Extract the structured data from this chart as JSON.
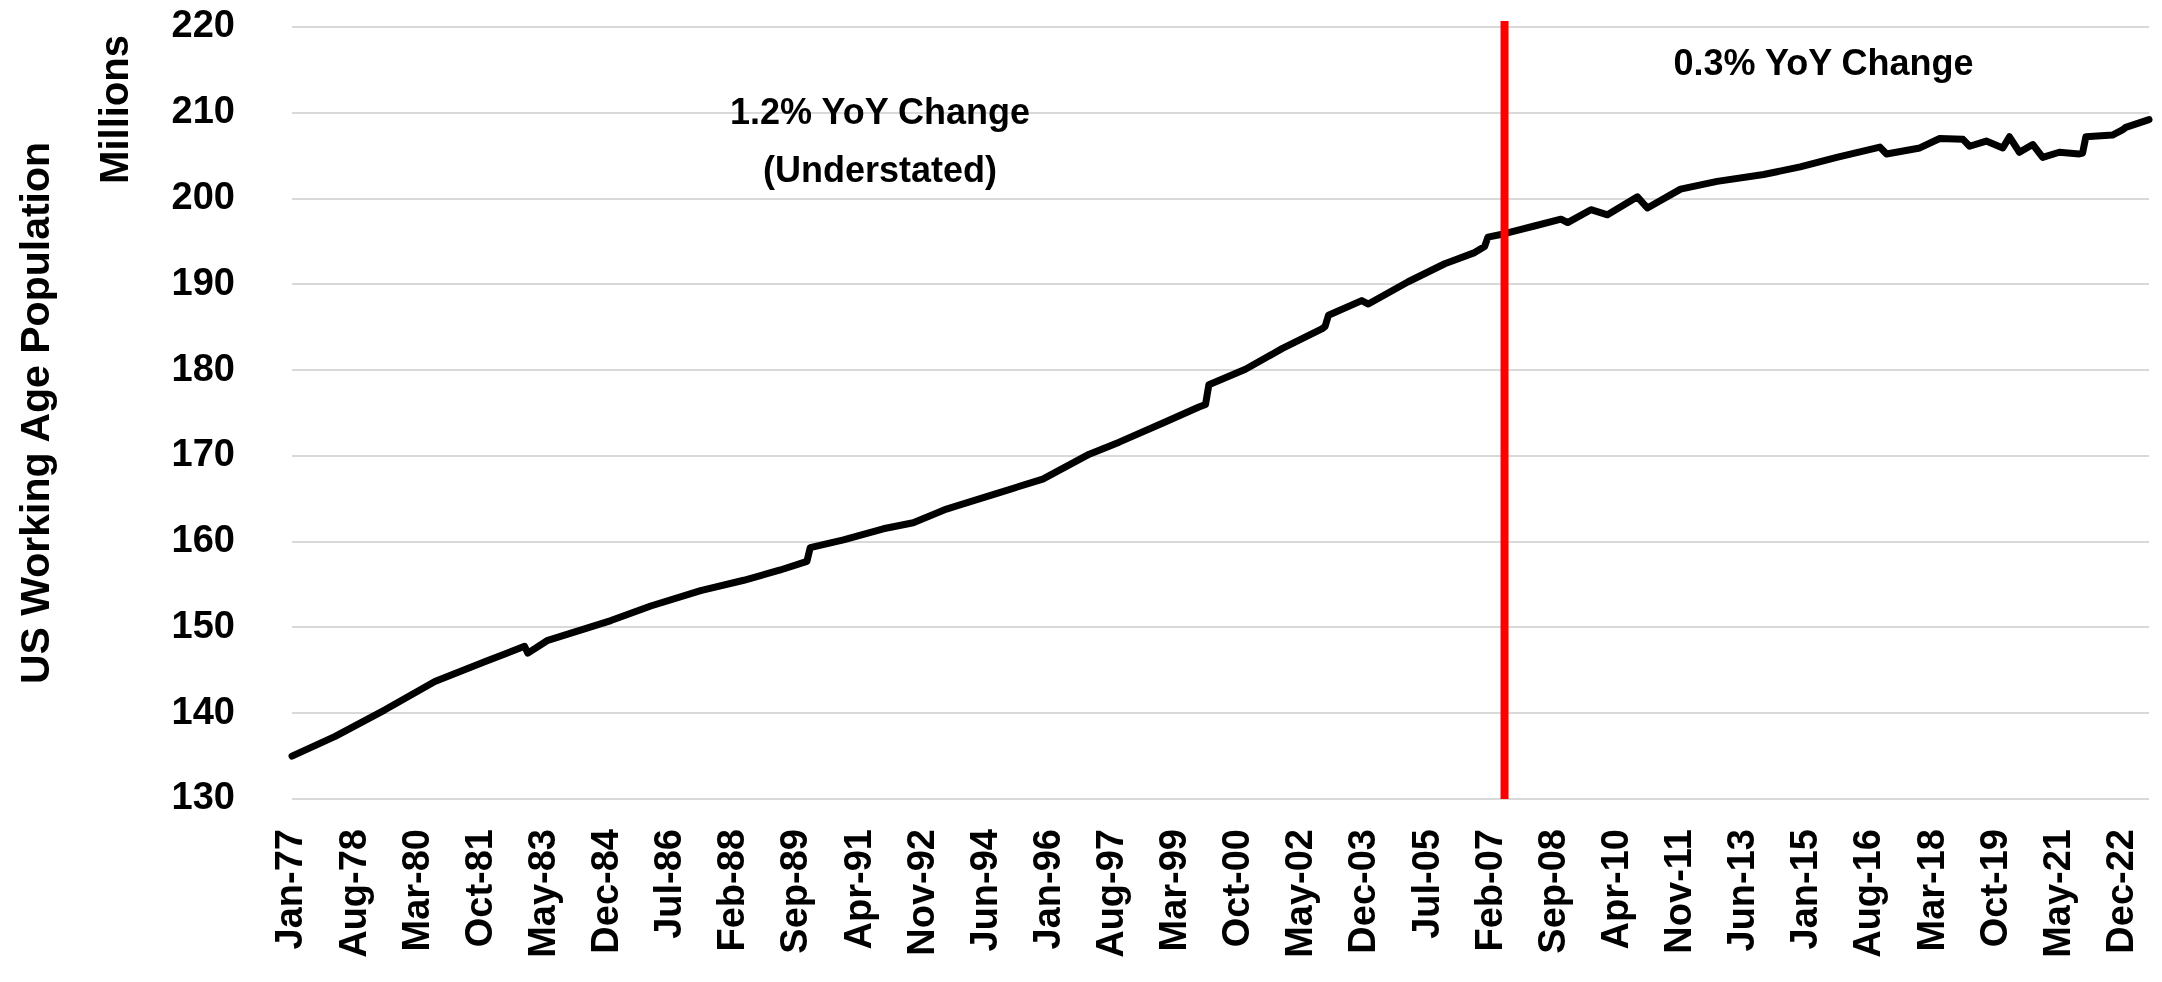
{
  "chart_data": {
    "type": "line",
    "ylabel": "US Working Age Population",
    "annotations": [
      "Millions",
      "1.2% YoY Change\n(Understated)",
      "0.3% YoY Change"
    ],
    "x": [
      "1977-01",
      "1978-02",
      "1979-05",
      "1980-08",
      "1981-11",
      "1982-11",
      "1982-12",
      "1983-06",
      "1985-01",
      "1986-01",
      "1987-04",
      "1988-05",
      "1989-04",
      "1989-12",
      "1990-01",
      "1990-11",
      "1991-11",
      "1992-08",
      "1993-06",
      "1994-09",
      "1995-11",
      "1997-01",
      "1997-10",
      "1998-11",
      "1999-10",
      "1999-12",
      "2000-01",
      "2000-12",
      "2001-11",
      "2002-11",
      "2002-12",
      "2003-01",
      "2003-11",
      "2004-01",
      "2005-01",
      "2005-12",
      "2006-09",
      "2006-12",
      "2007-01",
      "2007-06",
      "2008-03",
      "2008-11",
      "2009-01",
      "2009-08",
      "2010-01",
      "2010-10",
      "2011-01",
      "2011-11",
      "2012-10",
      "2013-12",
      "2014-11",
      "2015-10",
      "2016-11",
      "2017-01",
      "2017-11",
      "2018-05",
      "2018-12",
      "2019-02",
      "2019-07",
      "2019-12",
      "2020-02",
      "2020-05",
      "2020-09",
      "2020-12",
      "2021-05",
      "2021-11",
      "2021-12",
      "2022-01",
      "2022-09",
      "2022-12",
      "2023-01",
      "2023-08"
    ],
    "values": [
      135.0,
      137.3,
      140.4,
      143.7,
      146.0,
      147.8,
      147.0,
      148.5,
      150.8,
      152.5,
      154.3,
      155.5,
      156.7,
      157.7,
      159.3,
      160.2,
      161.5,
      162.2,
      163.8,
      165.6,
      167.3,
      170.2,
      171.6,
      173.8,
      175.7,
      176.0,
      178.3,
      180.1,
      182.5,
      184.8,
      185.1,
      186.4,
      188.1,
      187.7,
      190.3,
      192.4,
      193.7,
      194.4,
      195.5,
      195.9,
      196.8,
      197.6,
      197.2,
      198.7,
      198.1,
      200.2,
      198.9,
      201.1,
      202.0,
      202.8,
      203.7,
      204.8,
      206.0,
      205.2,
      205.9,
      207.0,
      206.9,
      206.1,
      206.7,
      205.9,
      207.2,
      205.4,
      206.3,
      204.8,
      205.4,
      205.2,
      205.3,
      207.2,
      207.4,
      208.0,
      208.3,
      209.2
    ],
    "color": "#000000",
    "xlim": [
      "1977-01",
      "2023-08"
    ],
    "xticks": [
      {
        "value": "1977-01",
        "label": "Jan-77"
      },
      {
        "value": "1978-08",
        "label": "Aug-78"
      },
      {
        "value": "1980-03",
        "label": "Mar-80"
      },
      {
        "value": "1981-10",
        "label": "Oct-81"
      },
      {
        "value": "1983-05",
        "label": "May-83"
      },
      {
        "value": "1984-12",
        "label": "Dec-84"
      },
      {
        "value": "1986-07",
        "label": "Jul-86"
      },
      {
        "value": "1988-02",
        "label": "Feb-88"
      },
      {
        "value": "1989-09",
        "label": "Sep-89"
      },
      {
        "value": "1991-04",
        "label": "Apr-91"
      },
      {
        "value": "1992-11",
        "label": "Nov-92"
      },
      {
        "value": "1994-06",
        "label": "Jun-94"
      },
      {
        "value": "1996-01",
        "label": "Jan-96"
      },
      {
        "value": "1997-08",
        "label": "Aug-97"
      },
      {
        "value": "1999-03",
        "label": "Mar-99"
      },
      {
        "value": "2000-10",
        "label": "Oct-00"
      },
      {
        "value": "2002-05",
        "label": "May-02"
      },
      {
        "value": "2003-12",
        "label": "Dec-03"
      },
      {
        "value": "2005-07",
        "label": "Jul-05"
      },
      {
        "value": "2007-02",
        "label": "Feb-07"
      },
      {
        "value": "2008-09",
        "label": "Sep-08"
      },
      {
        "value": "2010-04",
        "label": "Apr-10"
      },
      {
        "value": "2011-11",
        "label": "Nov-11"
      },
      {
        "value": "2013-06",
        "label": "Jun-13"
      },
      {
        "value": "2015-01",
        "label": "Jan-15"
      },
      {
        "value": "2016-08",
        "label": "Aug-16"
      },
      {
        "value": "2018-03",
        "label": "Mar-18"
      },
      {
        "value": "2019-10",
        "label": "Oct-19"
      },
      {
        "value": "2021-05",
        "label": "May-21"
      },
      {
        "value": "2022-12",
        "label": "Dec-22"
      }
    ],
    "ylim": [
      130,
      220
    ],
    "yticks": [
      130,
      140,
      150,
      160,
      170,
      180,
      190,
      200,
      210,
      220
    ],
    "grid": "y",
    "ref_lines": [
      {
        "axis": "x",
        "value": "2007-06",
        "color": "#ff0000"
      }
    ]
  }
}
